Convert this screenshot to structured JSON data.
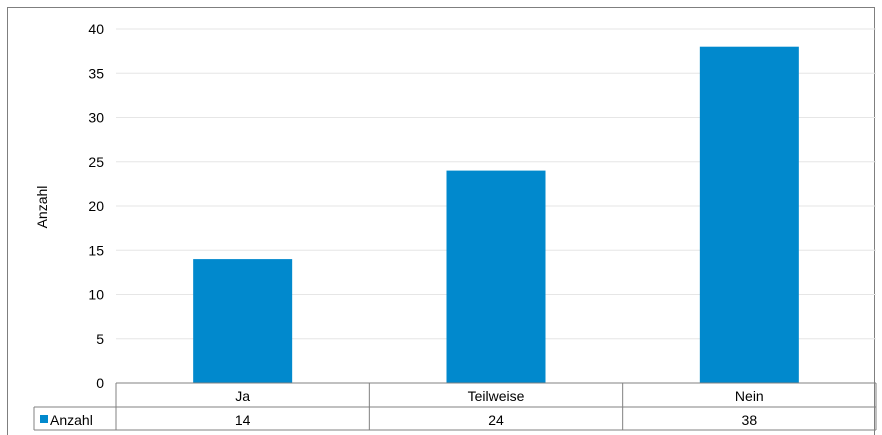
{
  "chart_data": {
    "type": "bar",
    "ylabel": "Anzahl",
    "categories": [
      "Ja",
      "Teilweise",
      "Nein"
    ],
    "series": [
      {
        "name": "Anzahl",
        "values": [
          14,
          24,
          38
        ]
      }
    ],
    "ylim": [
      0,
      40
    ],
    "yticks": [
      0,
      5,
      10,
      15,
      20,
      25,
      30,
      35,
      40
    ],
    "grid": true,
    "legend_placement": "data-table-left",
    "data_table": true,
    "colors": {
      "bar": "#0189CD",
      "grid": "#e6e6e6",
      "border": "#808080"
    }
  }
}
